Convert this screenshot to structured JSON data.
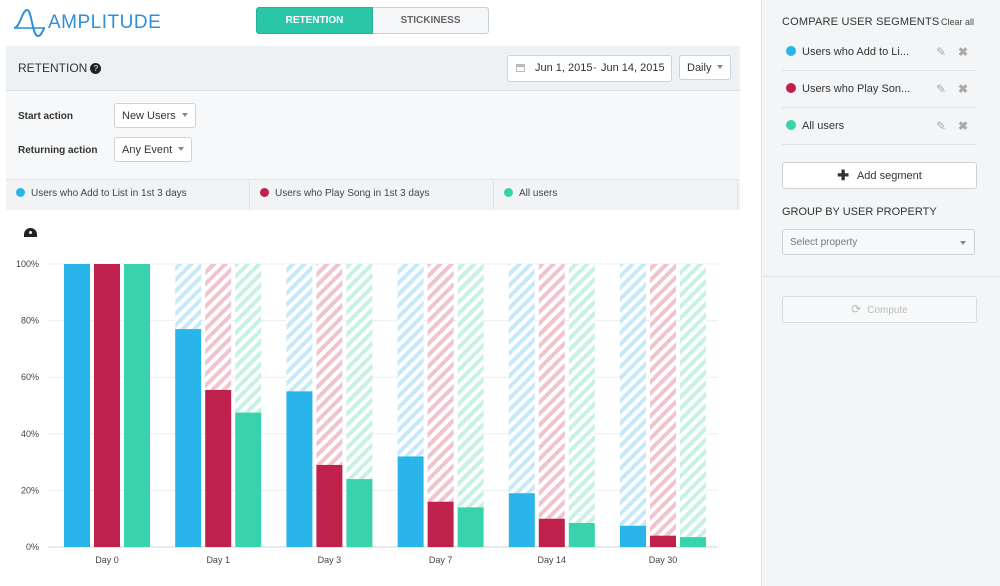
{
  "app": {
    "logo_text": "AMPLITUDE",
    "brand_color": "#2f8fd8"
  },
  "tabs": [
    {
      "label": "RETENTION",
      "active": true
    },
    {
      "label": "STICKINESS",
      "active": false
    }
  ],
  "panel": {
    "title": "RETENTION",
    "help_icon": "?",
    "date_start": "Jun 1, 2015",
    "date_sep": "-",
    "date_end": "Jun 14, 2015",
    "interval": "Daily"
  },
  "filters": {
    "start_label": "Start action",
    "start_value": "New Users",
    "return_label": "Returning action",
    "return_value": "Any Event"
  },
  "legend": [
    {
      "label": "Users who Add to List in 1st 3 days",
      "color": "#29b4ea"
    },
    {
      "label": "Users who Play Song in 1st 3 days",
      "color": "#c0204c"
    },
    {
      "label": "All users",
      "color": "#38d3ad"
    }
  ],
  "chart_data": {
    "type": "bar",
    "categories": [
      "Day 0",
      "Day 1",
      "Day 3",
      "Day 7",
      "Day 14",
      "Day 30"
    ],
    "ylim": [
      0,
      100
    ],
    "yticks": [
      "0%",
      "20%",
      "40%",
      "60%",
      "80%",
      "100%"
    ],
    "series": [
      {
        "name": "Users who Add to List in 1st 3 days",
        "color": "#29b4ea",
        "light": "#c6e9f9",
        "values": [
          100,
          77,
          55,
          32,
          19,
          7.5
        ]
      },
      {
        "name": "Users who Play Song in 1st 3 days",
        "color": "#c0204c",
        "light": "#efc4cf",
        "values": [
          100,
          55.5,
          29,
          16,
          10,
          4
        ]
      },
      {
        "name": "All users",
        "color": "#38d3ad",
        "light": "#c6f1e5",
        "values": [
          100,
          47.5,
          24,
          14,
          8.5,
          3.5
        ]
      }
    ]
  },
  "sidebar": {
    "compare_title": "COMPARE USER SEGMENTS",
    "clear_all": "Clear all",
    "segments": [
      {
        "label": "Users who Add to Li...",
        "color": "#29b4ea"
      },
      {
        "label": "Users who Play Son...",
        "color": "#c0204c"
      },
      {
        "label": "All users",
        "color": "#38d3ad"
      }
    ],
    "add_segment": "Add segment",
    "group_title": "GROUP BY USER PROPERTY",
    "select_placeholder": "Select property",
    "compute": "Compute"
  }
}
